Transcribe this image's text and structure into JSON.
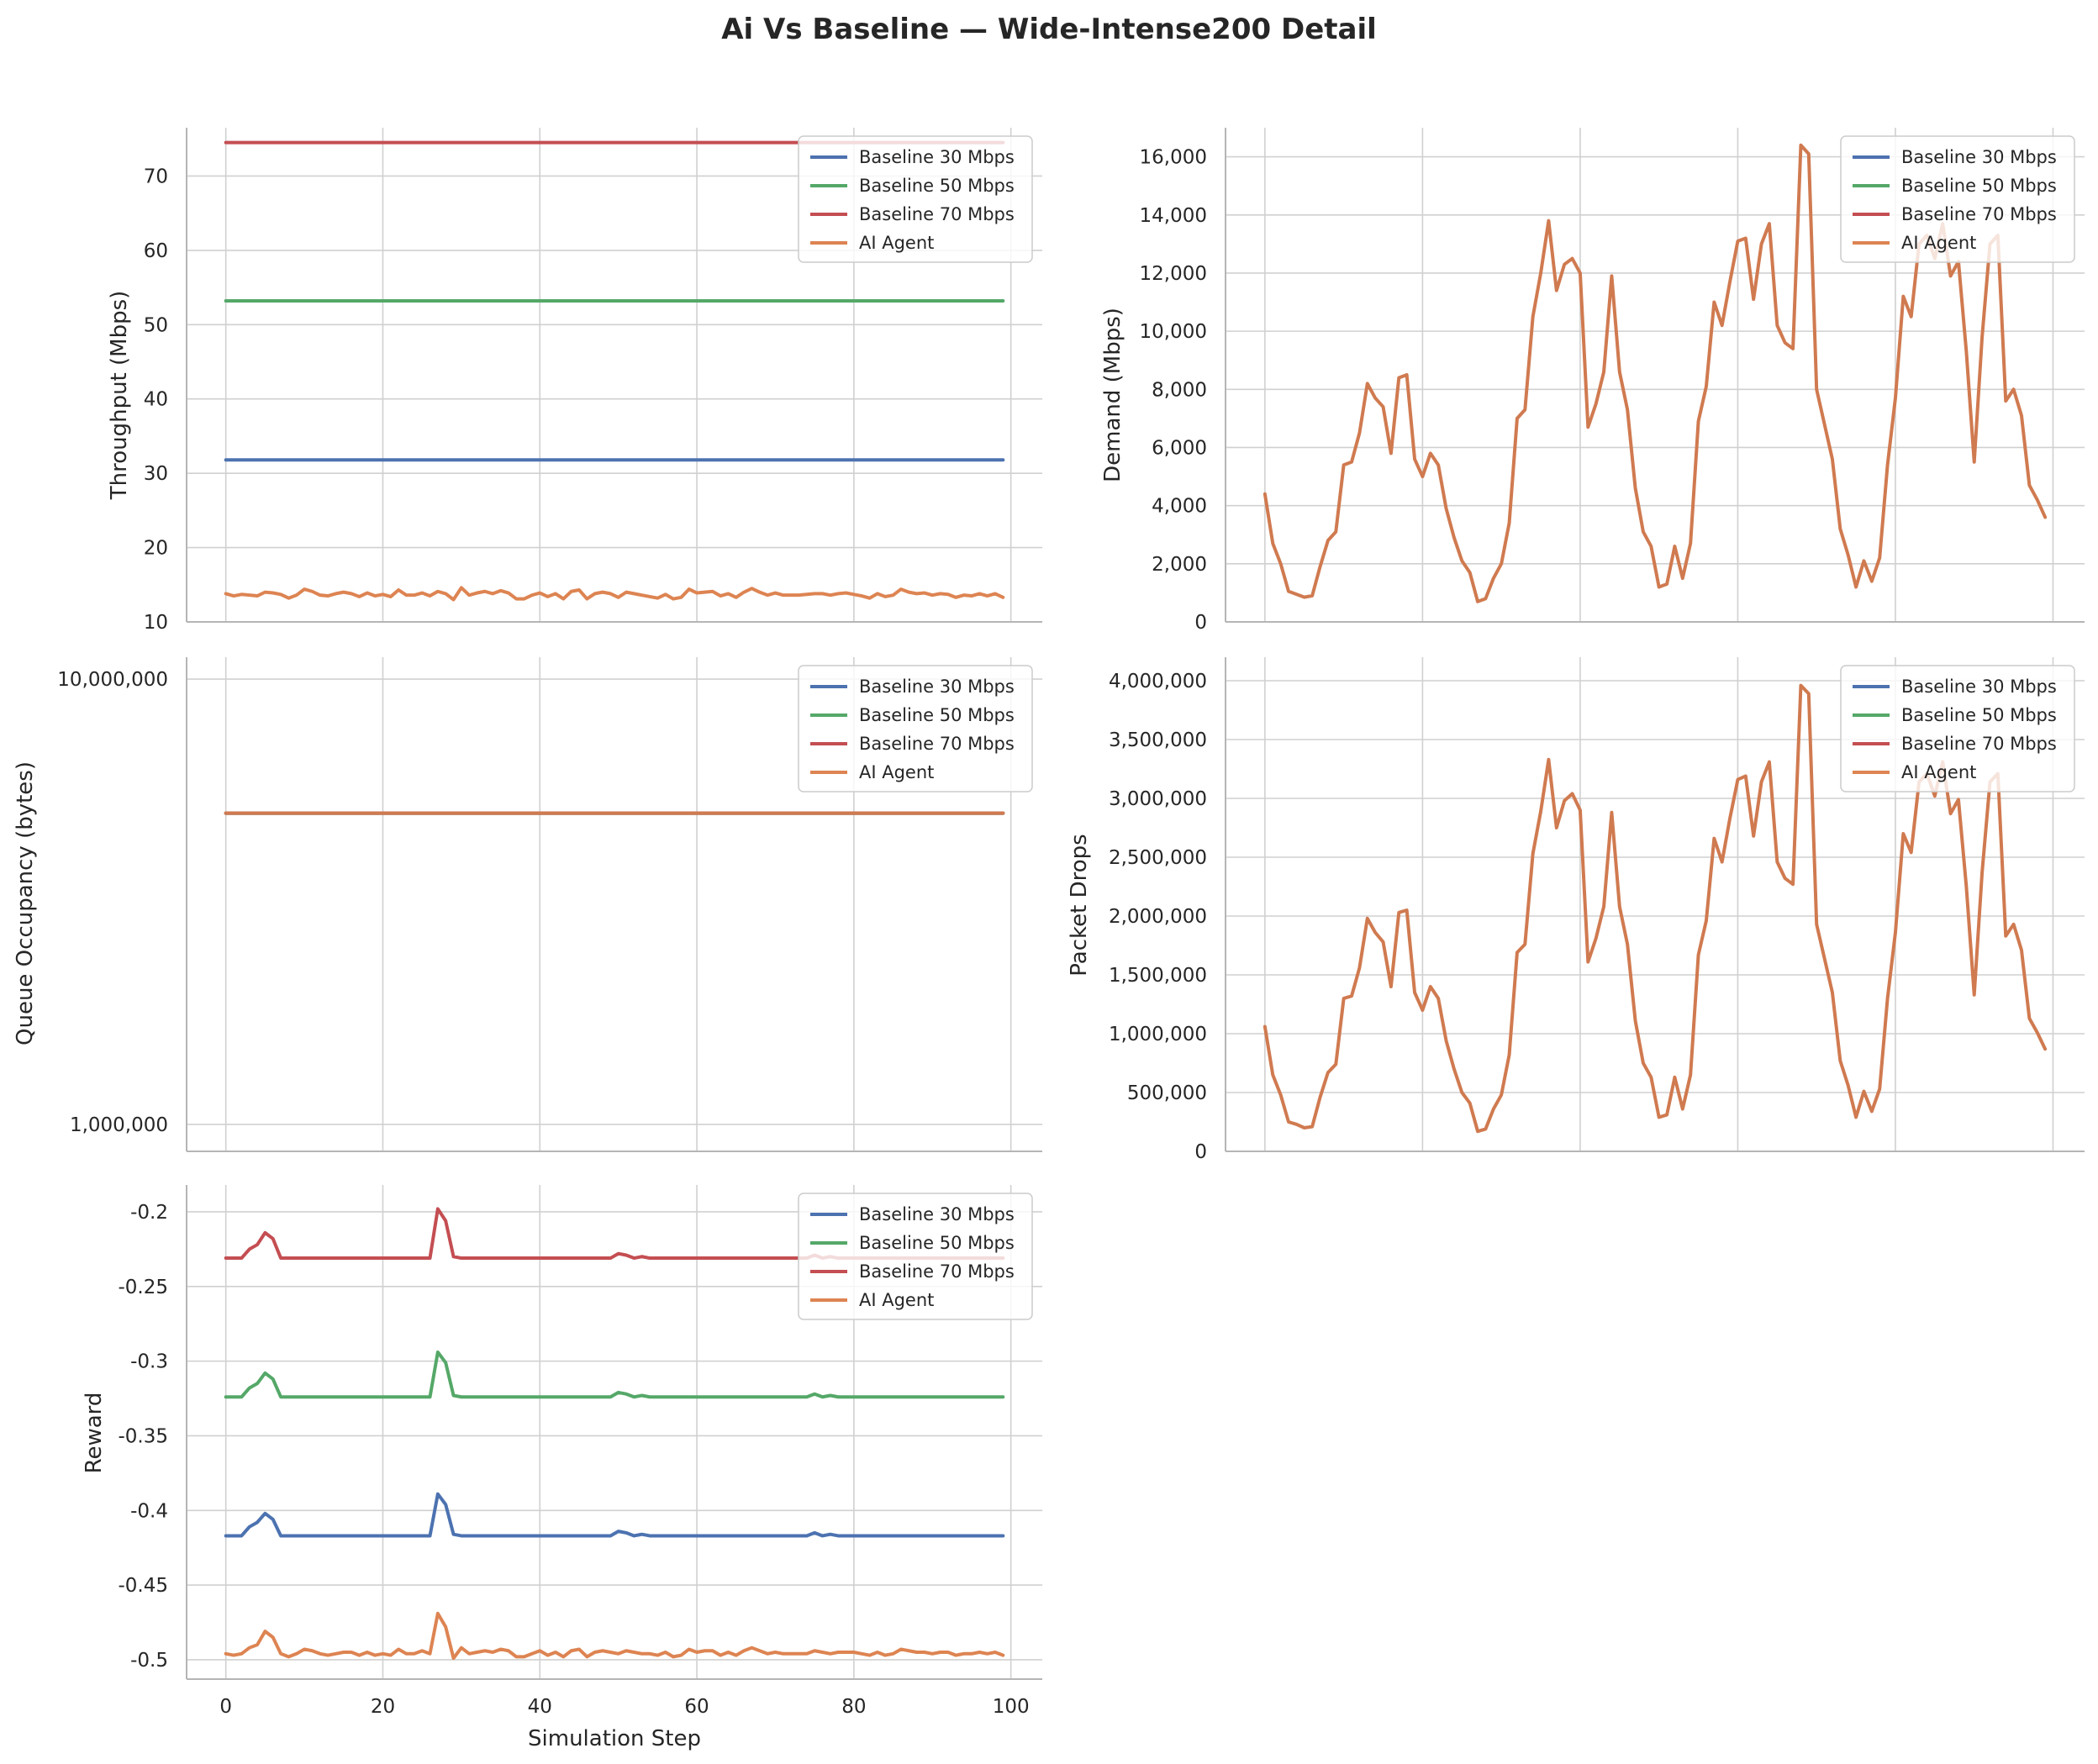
{
  "title": "Ai Vs Baseline — Wide-Intense200 Detail",
  "colors": {
    "Baseline 30 Mbps": "#4c72b0",
    "Baseline 50 Mbps": "#55a868",
    "Baseline 70 Mbps": "#c44e52",
    "AI Agent": "#dd8452",
    "overlap": "#d07a50"
  },
  "chart_data": [
    {
      "id": "throughput",
      "type": "line",
      "ylabel": "Throughput (Mbps)",
      "xlabel": "",
      "xlim": [
        -5,
        104
      ],
      "ylim": [
        10,
        76.5
      ],
      "yticks": [
        10,
        20,
        30,
        40,
        50,
        60,
        70
      ],
      "ytick_labels": [
        "10",
        "20",
        "30",
        "40",
        "50",
        "60",
        "70"
      ],
      "xticks": [
        0,
        20,
        40,
        60,
        80,
        100
      ],
      "show_xtick_labels": false,
      "legend": "top-right",
      "series": [
        {
          "name": "Baseline 30 Mbps",
          "constant": 31.8
        },
        {
          "name": "Baseline 50 Mbps",
          "constant": 53.2
        },
        {
          "name": "Baseline 70 Mbps",
          "constant": 74.5
        },
        {
          "name": "AI Agent",
          "values": [
            13.8,
            13.5,
            13.7,
            13.6,
            13.5,
            14.0,
            13.9,
            13.7,
            13.2,
            13.6,
            14.4,
            14.1,
            13.6,
            13.5,
            13.8,
            14.0,
            13.8,
            13.4,
            13.9,
            13.5,
            13.7,
            13.4,
            14.3,
            13.6,
            13.6,
            13.9,
            13.5,
            14.1,
            13.8,
            13.0,
            14.6,
            13.6,
            13.9,
            14.1,
            13.8,
            14.2,
            13.9,
            13.1,
            13.1,
            13.6,
            13.9,
            13.4,
            13.8,
            13.1,
            14.1,
            14.3,
            13.1,
            13.8,
            14.0,
            13.8,
            13.3,
            14.0,
            13.8,
            13.6,
            13.4,
            13.2,
            13.7,
            13.1,
            13.3,
            14.4,
            13.9,
            14.0,
            14.1,
            13.5,
            13.8,
            13.3,
            14.0,
            14.5,
            14.0,
            13.6,
            13.9,
            13.6,
            13.6,
            13.6,
            13.7,
            13.8,
            13.8,
            13.6,
            13.8,
            13.9,
            13.7,
            13.5,
            13.2,
            13.8,
            13.4,
            13.6,
            14.4,
            14.0,
            13.8,
            13.9,
            13.6,
            13.8,
            13.7,
            13.3,
            13.6,
            13.5,
            13.8,
            13.5,
            13.8,
            13.3
          ]
        }
      ]
    },
    {
      "id": "demand",
      "type": "line",
      "ylabel": "Demand (Mbps)",
      "xlabel": "",
      "xlim": [
        -5,
        104
      ],
      "ylim": [
        0,
        17000
      ],
      "yticks": [
        0,
        2000,
        4000,
        6000,
        8000,
        10000,
        12000,
        14000,
        16000
      ],
      "ytick_labels": [
        "0",
        "2,000",
        "4,000",
        "6,000",
        "8,000",
        "10,000",
        "12,000",
        "14,000",
        "16,000"
      ],
      "xticks": [
        0,
        20,
        40,
        60,
        80,
        100
      ],
      "show_xtick_labels": false,
      "legend": "top-right",
      "series": [
        {
          "name": "Baseline 30 Mbps"
        },
        {
          "name": "Baseline 50 Mbps"
        },
        {
          "name": "Baseline 70 Mbps"
        },
        {
          "name": "AI Agent",
          "values": [
            4400,
            2700,
            2000,
            1050,
            950,
            850,
            900,
            1900,
            2800,
            3100,
            5400,
            5500,
            6500,
            8200,
            7700,
            7400,
            5800,
            8400,
            8500,
            5600,
            5000,
            5800,
            5400,
            3900,
            2900,
            2100,
            1700,
            700,
            800,
            1500,
            2000,
            3400,
            7000,
            7300,
            10500,
            12000,
            13800,
            11400,
            12300,
            12500,
            12000,
            6700,
            7500,
            8600,
            11900,
            8600,
            7300,
            4600,
            3100,
            2600,
            1200,
            1300,
            2600,
            1500,
            2700,
            6900,
            8100,
            11000,
            10200,
            11700,
            13100,
            13200,
            11100,
            13000,
            13700,
            10200,
            9600,
            9400,
            16400,
            16100,
            8000,
            6800,
            5600,
            3200,
            2300,
            1200,
            2100,
            1400,
            2200,
            5400,
            7700,
            11200,
            10500,
            13000,
            13300,
            12500,
            13700,
            11900,
            12400,
            9300,
            5500,
            9800,
            13000,
            13300,
            7600,
            8000,
            7100,
            4700,
            4200,
            3600
          ]
        }
      ]
    },
    {
      "id": "queue",
      "type": "line",
      "ylabel": "Queue Occupancy (bytes)",
      "xlabel": "",
      "log_y": true,
      "xlim": [
        -5,
        104
      ],
      "ylim": [
        870000,
        11200000
      ],
      "yticks": [
        1000000,
        10000000
      ],
      "ytick_labels": [
        "1,000,000",
        "10,000,000"
      ],
      "xticks": [
        0,
        20,
        40,
        60,
        80,
        100
      ],
      "show_xtick_labels": false,
      "legend": "top-right",
      "series": [
        {
          "name": "Baseline 30 Mbps",
          "constant": 5000000
        },
        {
          "name": "Baseline 50 Mbps",
          "constant": 5000000
        },
        {
          "name": "Baseline 70 Mbps",
          "constant": 5000000
        },
        {
          "name": "AI Agent",
          "constant": 5000000
        }
      ]
    },
    {
      "id": "drops",
      "type": "line",
      "ylabel": "Packet Drops",
      "xlabel": "",
      "xlim": [
        -5,
        104
      ],
      "ylim": [
        0,
        4200000
      ],
      "yticks": [
        0,
        500000,
        1000000,
        1500000,
        2000000,
        2500000,
        3000000,
        3500000,
        4000000
      ],
      "ytick_labels": [
        "0",
        "500,000",
        "1,000,000",
        "1,500,000",
        "2,000,000",
        "2,500,000",
        "3,000,000",
        "3,500,000",
        "4,000,000"
      ],
      "xticks": [
        0,
        20,
        40,
        60,
        80,
        100
      ],
      "show_xtick_labels": false,
      "legend": "top-right",
      "series": [
        {
          "name": "Baseline 30 Mbps"
        },
        {
          "name": "Baseline 50 Mbps"
        },
        {
          "name": "Baseline 70 Mbps"
        },
        {
          "name": "AI Agent",
          "values": [
            1060000,
            650000,
            480000,
            250000,
            230000,
            200000,
            210000,
            460000,
            670000,
            740000,
            1300000,
            1320000,
            1560000,
            1980000,
            1860000,
            1780000,
            1400000,
            2030000,
            2050000,
            1350000,
            1200000,
            1400000,
            1300000,
            940000,
            700000,
            500000,
            410000,
            170000,
            190000,
            360000,
            480000,
            820000,
            1690000,
            1760000,
            2530000,
            2890000,
            3330000,
            2750000,
            2980000,
            3040000,
            2900000,
            1610000,
            1810000,
            2080000,
            2880000,
            2080000,
            1760000,
            1110000,
            750000,
            630000,
            290000,
            310000,
            630000,
            360000,
            650000,
            1670000,
            1960000,
            2660000,
            2460000,
            2830000,
            3160000,
            3190000,
            2680000,
            3140000,
            3310000,
            2460000,
            2320000,
            2270000,
            3960000,
            3890000,
            1930000,
            1640000,
            1350000,
            770000,
            560000,
            290000,
            510000,
            340000,
            530000,
            1300000,
            1860000,
            2700000,
            2540000,
            3140000,
            3210000,
            3020000,
            3310000,
            2870000,
            2990000,
            2250000,
            1330000,
            2370000,
            3140000,
            3210000,
            1830000,
            1930000,
            1710000,
            1130000,
            1010000,
            870000
          ]
        }
      ]
    },
    {
      "id": "reward",
      "type": "line",
      "ylabel": "Reward",
      "xlabel": "Simulation Step",
      "xlim": [
        -5,
        104
      ],
      "ylim": [
        -0.513,
        -0.182
      ],
      "yticks": [
        -0.5,
        -0.45,
        -0.4,
        -0.35,
        -0.3,
        -0.25,
        -0.2
      ],
      "ytick_labels": [
        "-0.5",
        "-0.45",
        "-0.4",
        "-0.35",
        "-0.3",
        "-0.25",
        "-0.2"
      ],
      "xticks": [
        0,
        20,
        40,
        60,
        80,
        100
      ],
      "xtick_labels": [
        "0",
        "20",
        "40",
        "60",
        "80",
        "100"
      ],
      "show_xtick_labels": true,
      "legend": "top-right",
      "series": [
        {
          "name": "Baseline 30 Mbps",
          "values": [
            -0.417,
            -0.417,
            -0.417,
            -0.411,
            -0.408,
            -0.402,
            -0.406,
            -0.417,
            -0.417,
            -0.417,
            -0.417,
            -0.417,
            -0.417,
            -0.417,
            -0.417,
            -0.417,
            -0.417,
            -0.417,
            -0.417,
            -0.417,
            -0.417,
            -0.417,
            -0.417,
            -0.417,
            -0.417,
            -0.417,
            -0.417,
            -0.389,
            -0.396,
            -0.416,
            -0.417,
            -0.417,
            -0.417,
            -0.417,
            -0.417,
            -0.417,
            -0.417,
            -0.417,
            -0.417,
            -0.417,
            -0.417,
            -0.417,
            -0.417,
            -0.417,
            -0.417,
            -0.417,
            -0.417,
            -0.417,
            -0.417,
            -0.417,
            -0.414,
            -0.415,
            -0.417,
            -0.416,
            -0.417,
            -0.417,
            -0.417,
            -0.417,
            -0.417,
            -0.417,
            -0.417,
            -0.417,
            -0.417,
            -0.417,
            -0.417,
            -0.417,
            -0.417,
            -0.417,
            -0.417,
            -0.417,
            -0.417,
            -0.417,
            -0.417,
            -0.417,
            -0.417,
            -0.415,
            -0.417,
            -0.416,
            -0.417,
            -0.417,
            -0.417,
            -0.417,
            -0.417,
            -0.417,
            -0.417,
            -0.417,
            -0.417,
            -0.417,
            -0.417,
            -0.417,
            -0.417,
            -0.417,
            -0.417,
            -0.417,
            -0.417,
            -0.417,
            -0.417,
            -0.417,
            -0.417,
            -0.417
          ]
        },
        {
          "name": "Baseline 50 Mbps",
          "values": [
            -0.324,
            -0.324,
            -0.324,
            -0.318,
            -0.315,
            -0.308,
            -0.312,
            -0.324,
            -0.324,
            -0.324,
            -0.324,
            -0.324,
            -0.324,
            -0.324,
            -0.324,
            -0.324,
            -0.324,
            -0.324,
            -0.324,
            -0.324,
            -0.324,
            -0.324,
            -0.324,
            -0.324,
            -0.324,
            -0.324,
            -0.324,
            -0.294,
            -0.301,
            -0.323,
            -0.324,
            -0.324,
            -0.324,
            -0.324,
            -0.324,
            -0.324,
            -0.324,
            -0.324,
            -0.324,
            -0.324,
            -0.324,
            -0.324,
            -0.324,
            -0.324,
            -0.324,
            -0.324,
            -0.324,
            -0.324,
            -0.324,
            -0.324,
            -0.321,
            -0.322,
            -0.324,
            -0.323,
            -0.324,
            -0.324,
            -0.324,
            -0.324,
            -0.324,
            -0.324,
            -0.324,
            -0.324,
            -0.324,
            -0.324,
            -0.324,
            -0.324,
            -0.324,
            -0.324,
            -0.324,
            -0.324,
            -0.324,
            -0.324,
            -0.324,
            -0.324,
            -0.324,
            -0.322,
            -0.324,
            -0.323,
            -0.324,
            -0.324,
            -0.324,
            -0.324,
            -0.324,
            -0.324,
            -0.324,
            -0.324,
            -0.324,
            -0.324,
            -0.324,
            -0.324,
            -0.324,
            -0.324,
            -0.324,
            -0.324,
            -0.324,
            -0.324,
            -0.324,
            -0.324,
            -0.324,
            -0.324
          ]
        },
        {
          "name": "Baseline 70 Mbps",
          "values": [
            -0.231,
            -0.231,
            -0.231,
            -0.225,
            -0.222,
            -0.214,
            -0.218,
            -0.231,
            -0.231,
            -0.231,
            -0.231,
            -0.231,
            -0.231,
            -0.231,
            -0.231,
            -0.231,
            -0.231,
            -0.231,
            -0.231,
            -0.231,
            -0.231,
            -0.231,
            -0.231,
            -0.231,
            -0.231,
            -0.231,
            -0.231,
            -0.198,
            -0.206,
            -0.23,
            -0.231,
            -0.231,
            -0.231,
            -0.231,
            -0.231,
            -0.231,
            -0.231,
            -0.231,
            -0.231,
            -0.231,
            -0.231,
            -0.231,
            -0.231,
            -0.231,
            -0.231,
            -0.231,
            -0.231,
            -0.231,
            -0.231,
            -0.231,
            -0.228,
            -0.229,
            -0.231,
            -0.23,
            -0.231,
            -0.231,
            -0.231,
            -0.231,
            -0.231,
            -0.231,
            -0.231,
            -0.231,
            -0.231,
            -0.231,
            -0.231,
            -0.231,
            -0.231,
            -0.231,
            -0.231,
            -0.231,
            -0.231,
            -0.231,
            -0.231,
            -0.231,
            -0.231,
            -0.229,
            -0.231,
            -0.23,
            -0.231,
            -0.231,
            -0.231,
            -0.231,
            -0.231,
            -0.231,
            -0.231,
            -0.231,
            -0.231,
            -0.231,
            -0.231,
            -0.231,
            -0.231,
            -0.231,
            -0.231,
            -0.231,
            -0.231,
            -0.231,
            -0.231,
            -0.231,
            -0.231,
            -0.231
          ]
        },
        {
          "name": "AI Agent",
          "values": [
            -0.496,
            -0.497,
            -0.496,
            -0.492,
            -0.49,
            -0.481,
            -0.485,
            -0.496,
            -0.498,
            -0.496,
            -0.493,
            -0.494,
            -0.496,
            -0.497,
            -0.496,
            -0.495,
            -0.495,
            -0.497,
            -0.495,
            -0.497,
            -0.496,
            -0.497,
            -0.493,
            -0.496,
            -0.496,
            -0.494,
            -0.496,
            -0.469,
            -0.478,
            -0.499,
            -0.492,
            -0.496,
            -0.495,
            -0.494,
            -0.495,
            -0.493,
            -0.494,
            -0.498,
            -0.498,
            -0.496,
            -0.494,
            -0.497,
            -0.495,
            -0.498,
            -0.494,
            -0.493,
            -0.498,
            -0.495,
            -0.494,
            -0.495,
            -0.496,
            -0.494,
            -0.495,
            -0.496,
            -0.496,
            -0.497,
            -0.495,
            -0.498,
            -0.497,
            -0.493,
            -0.495,
            -0.494,
            -0.494,
            -0.497,
            -0.495,
            -0.497,
            -0.494,
            -0.492,
            -0.494,
            -0.496,
            -0.495,
            -0.496,
            -0.496,
            -0.496,
            -0.496,
            -0.494,
            -0.495,
            -0.496,
            -0.495,
            -0.495,
            -0.495,
            -0.496,
            -0.497,
            -0.495,
            -0.497,
            -0.496,
            -0.493,
            -0.494,
            -0.495,
            -0.495,
            -0.496,
            -0.495,
            -0.495,
            -0.497,
            -0.496,
            -0.496,
            -0.495,
            -0.496,
            -0.495,
            -0.497
          ]
        }
      ]
    }
  ]
}
